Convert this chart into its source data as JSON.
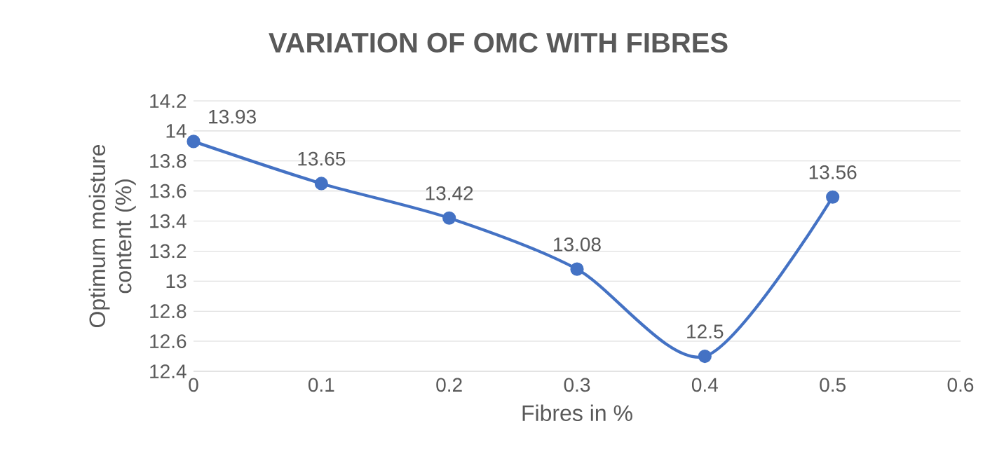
{
  "chart_data": {
    "type": "line",
    "title": "VARIATION OF OMC WITH FIBRES",
    "xlabel": "Fibres in %",
    "ylabel": "Optimum moisture content (%)",
    "x": [
      0,
      0.1,
      0.2,
      0.3,
      0.4,
      0.5
    ],
    "series": [
      {
        "color": "#4472c4",
        "values": [
          13.93,
          13.65,
          13.42,
          13.08,
          12.5,
          13.56
        ]
      }
    ],
    "xlim": [
      0,
      0.6
    ],
    "xticks": [
      0,
      0.1,
      0.2,
      0.3,
      0.4,
      0.5,
      0.6
    ],
    "ylim": [
      12.4,
      14.2
    ],
    "yticks": [
      12.4,
      12.6,
      12.8,
      13,
      13.2,
      13.4,
      13.6,
      13.8,
      14,
      14.2
    ],
    "grid": "y",
    "marker": "circle",
    "line_style": "solid",
    "data_labels": true
  }
}
